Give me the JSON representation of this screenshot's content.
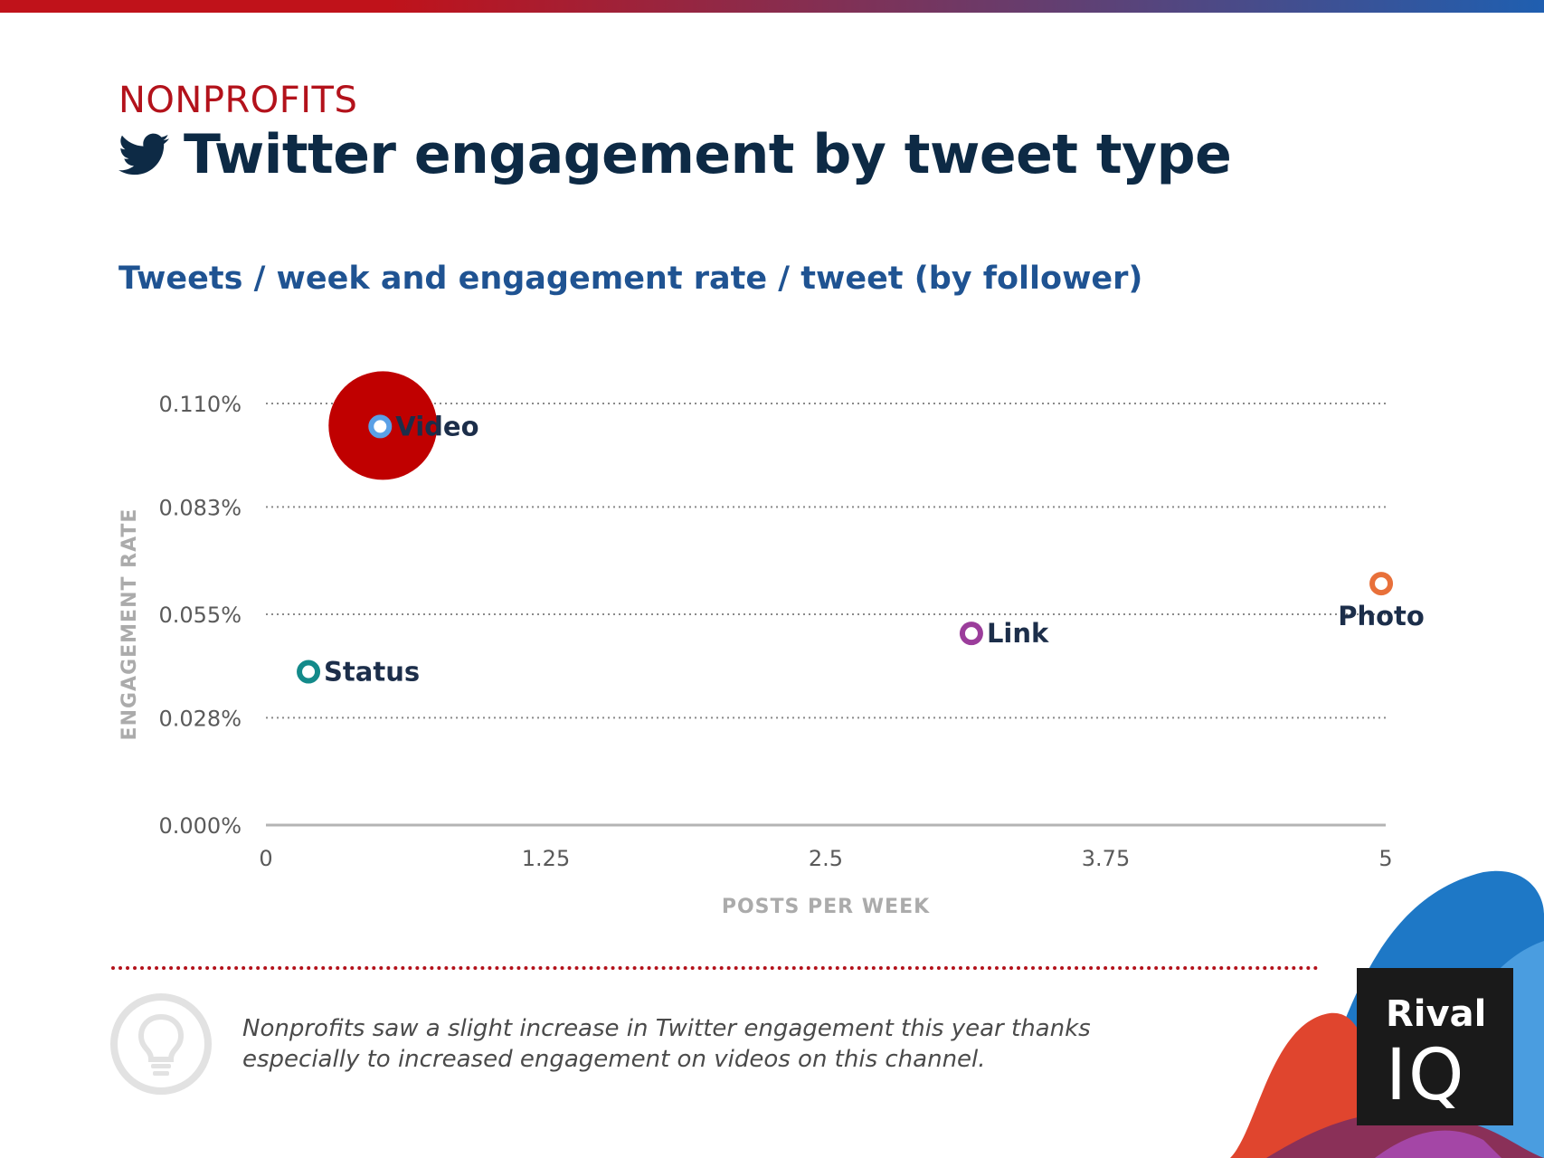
{
  "header": {
    "category": "NONPROFITS",
    "title": "Twitter engagement by tweet type",
    "subtitle": "Tweets / week and engagement rate / tweet (by follower)",
    "icon": "twitter-bird-icon"
  },
  "chart_data": {
    "type": "scatter",
    "title": "Tweets / week and engagement rate / tweet (by follower)",
    "xlabel": "POSTS PER WEEK",
    "ylabel": "ENGAGEMENT RATE",
    "xlim": [
      0,
      5
    ],
    "ylim": [
      0,
      0.11
    ],
    "x_ticks": [
      {
        "value": 0,
        "label": "0"
      },
      {
        "value": 1.25,
        "label": "1.25"
      },
      {
        "value": 2.5,
        "label": "2.5"
      },
      {
        "value": 3.75,
        "label": "3.75"
      },
      {
        "value": 5,
        "label": "5"
      }
    ],
    "y_ticks": [
      {
        "value": 0.11,
        "label": "0.110%"
      },
      {
        "value": 0.083,
        "label": "0.083%"
      },
      {
        "value": 0.055,
        "label": "0.055%"
      },
      {
        "value": 0.028,
        "label": "0.028%"
      },
      {
        "value": 0.0,
        "label": "0.000%"
      }
    ],
    "grid": true,
    "points": [
      {
        "name": "Video",
        "x": 0.51,
        "y": 0.104,
        "color": "#5aa0e6",
        "highlight": true,
        "label_side": "right"
      },
      {
        "name": "Status",
        "x": 0.19,
        "y": 0.04,
        "color": "#138a8a",
        "highlight": false,
        "label_side": "right"
      },
      {
        "name": "Link",
        "x": 3.15,
        "y": 0.05,
        "color": "#9b3d9b",
        "highlight": false,
        "label_side": "right"
      },
      {
        "name": "Photo",
        "x": 4.98,
        "y": 0.063,
        "color": "#e8703a",
        "highlight": false,
        "label_side": "below"
      }
    ],
    "highlight_color": "#c00000"
  },
  "insight": {
    "text": "Nonprofits saw a slight increase in Twitter engagement this year thanks especially to increased engagement on videos on this channel.",
    "icon": "lightbulb-icon"
  },
  "logo": {
    "word": "Rival",
    "mark": "IQ"
  },
  "colors": {
    "brand_red": "#b3121b",
    "title_navy": "#0d2a45",
    "subtitle_blue": "#1f5392"
  }
}
